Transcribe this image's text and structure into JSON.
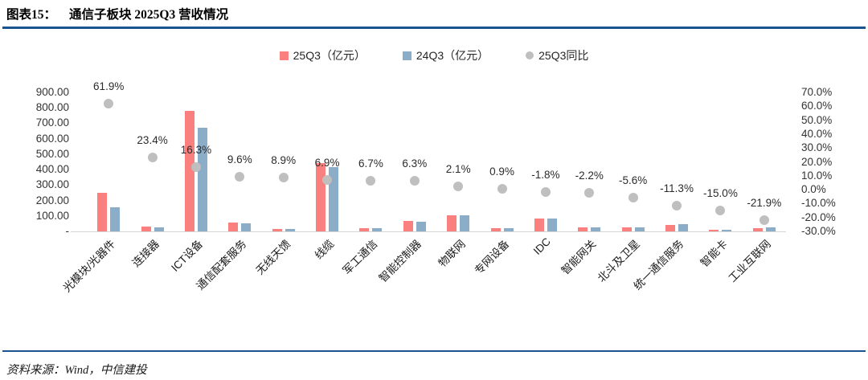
{
  "header": {
    "title_prefix": "图表15：",
    "title": "通信子板块 2025Q3 营收情况"
  },
  "legend": [
    {
      "label": "25Q3（亿元）",
      "marker": "square",
      "color": "#F9807E"
    },
    {
      "label": "24Q3（亿元）",
      "marker": "square",
      "color": "#8CADC8"
    },
    {
      "label": "25Q3同比",
      "marker": "circle",
      "color": "#BFBFBF"
    }
  ],
  "chart_data": {
    "type": "bar",
    "title": "通信子板块 2025Q3 营收情况",
    "categories": [
      "光模块/光器件",
      "连接器",
      "ICT设备",
      "通信配套服务",
      "无线天馈",
      "线缆",
      "军工通信",
      "智能控制器",
      "物联网",
      "专网设备",
      "IDC",
      "智能网关",
      "北斗及卫星",
      "统一通信服务",
      "智能卡",
      "工业互联网"
    ],
    "series": [
      {
        "name": "25Q3（亿元）",
        "type": "bar",
        "axis": "left",
        "color": "#F9807E",
        "values": [
          250,
          33,
          778,
          56,
          16,
          442,
          21,
          66,
          106,
          22,
          82,
          25,
          26,
          42,
          9,
          22
        ]
      },
      {
        "name": "24Q3（亿元）",
        "type": "bar",
        "axis": "left",
        "color": "#8CADC8",
        "values": [
          154,
          27,
          669,
          51,
          15,
          415,
          20,
          62,
          104,
          22,
          84,
          26,
          28,
          47,
          11,
          28
        ]
      },
      {
        "name": "25Q3同比",
        "type": "scatter",
        "axis": "right",
        "color": "#BFBFBF",
        "values": [
          61.9,
          23.4,
          16.3,
          9.6,
          8.9,
          6.9,
          6.7,
          6.3,
          2.1,
          0.9,
          -1.8,
          -2.2,
          -5.6,
          -11.3,
          -15.0,
          -21.9
        ],
        "labels": [
          "61.9%",
          "23.4%",
          "16.3%",
          "9.6%",
          "8.9%",
          "6.9%",
          "6.7%",
          "6.3%",
          "2.1%",
          "0.9%",
          "-1.8%",
          "-2.2%",
          "-5.6%",
          "-11.3%",
          "-15.0%",
          "-21.9%"
        ]
      }
    ],
    "left_axis": {
      "min": 0,
      "max": 900,
      "ticks": [
        {
          "label": "900.00",
          "value": 900
        },
        {
          "label": "800.00",
          "value": 800
        },
        {
          "label": "700.00",
          "value": 700
        },
        {
          "label": "600.00",
          "value": 600
        },
        {
          "label": "500.00",
          "value": 500
        },
        {
          "label": "400.00",
          "value": 400
        },
        {
          "label": "300.00",
          "value": 300
        },
        {
          "label": "200.00",
          "value": 200
        },
        {
          "label": "100.00",
          "value": 100
        },
        {
          "label": "-",
          "value": 0
        }
      ]
    },
    "right_axis": {
      "min": -30,
      "max": 70,
      "ticks": [
        {
          "label": "70.0%",
          "value": 70
        },
        {
          "label": "60.0%",
          "value": 60
        },
        {
          "label": "50.0%",
          "value": 50
        },
        {
          "label": "40.0%",
          "value": 40
        },
        {
          "label": "30.0%",
          "value": 30
        },
        {
          "label": "20.0%",
          "value": 20
        },
        {
          "label": "10.0%",
          "value": 10
        },
        {
          "label": "0.0%",
          "value": 0
        },
        {
          "label": "-10.0%",
          "value": -10
        },
        {
          "label": "-20.0%",
          "value": -20
        },
        {
          "label": "-30.0%",
          "value": -30
        }
      ]
    },
    "grid": false,
    "legend_position": "top-center"
  },
  "footer": {
    "source": "资料来源：Wind，中信建投"
  },
  "colors": {
    "divider": "#1A5490",
    "axis_line": "#D6D6D6"
  }
}
